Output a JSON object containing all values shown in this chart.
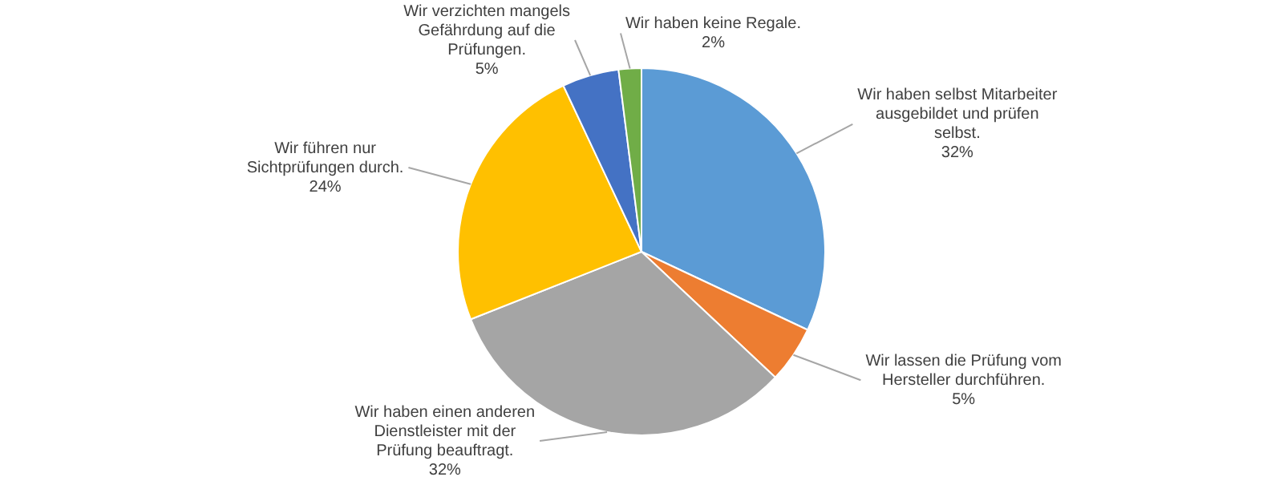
{
  "chart_data": {
    "type": "pie",
    "categories": [
      "Wir haben selbst Mitarbeiter ausgebildet und prüfen selbst.",
      "Wir lassen die Prüfung vom Hersteller durchführen.",
      "Wir haben einen anderen Dienstleister mit der Prüfung beauftragt.",
      "Wir führen nur Sichtprüfungen durch.",
      "Wir verzichten mangels Gefährdung auf die Prüfungen.",
      "Wir haben keine Regale."
    ],
    "values": [
      32,
      5,
      32,
      24,
      5,
      2
    ],
    "value_labels": [
      "32%",
      "5%",
      "32%",
      "24%",
      "5%",
      "2%"
    ],
    "colors": [
      "#5b9bd5",
      "#ed7d31",
      "#a5a5a5",
      "#ffc000",
      "#4472c4",
      "#70ad47"
    ],
    "legend": false
  }
}
